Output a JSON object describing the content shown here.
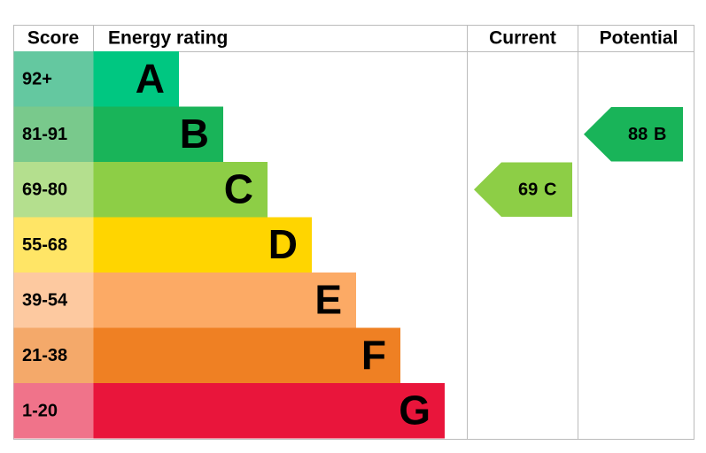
{
  "header": {
    "score": "Score",
    "rating": "Energy rating",
    "current": "Current",
    "potential": "Potential"
  },
  "bands": [
    {
      "score": "92+",
      "letter": "A",
      "color": "#00c781",
      "score_color": "#64c8a0"
    },
    {
      "score": "81-91",
      "letter": "B",
      "color": "#19b459",
      "score_color": "#79c98c"
    },
    {
      "score": "69-80",
      "letter": "C",
      "color": "#8dce46",
      "score_color": "#b4df8e"
    },
    {
      "score": "55-68",
      "letter": "D",
      "color": "#ffd500",
      "score_color": "#ffe566"
    },
    {
      "score": "39-54",
      "letter": "E",
      "color": "#fcaa65",
      "score_color": "#fdc9a0"
    },
    {
      "score": "21-38",
      "letter": "F",
      "color": "#ef8023",
      "score_color": "#f4a96a"
    },
    {
      "score": "1-20",
      "letter": "G",
      "color": "#e9153b",
      "score_color": "#f0738a"
    }
  ],
  "current": {
    "value": "69",
    "letter": "C"
  },
  "potential": {
    "value": "88",
    "letter": "B"
  }
}
